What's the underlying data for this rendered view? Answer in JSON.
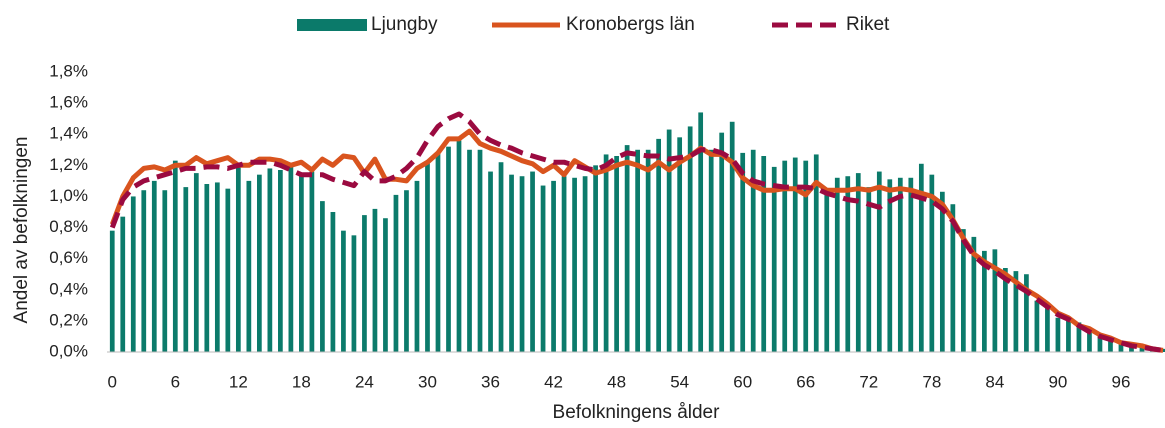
{
  "chart_data": {
    "type": "bar",
    "xlabel": "Befolkningens ålder",
    "ylabel": "Andel av befolkningen",
    "x": [
      0,
      1,
      2,
      3,
      4,
      5,
      6,
      7,
      8,
      9,
      10,
      11,
      12,
      13,
      14,
      15,
      16,
      17,
      18,
      19,
      20,
      21,
      22,
      23,
      24,
      25,
      26,
      27,
      28,
      29,
      30,
      31,
      32,
      33,
      34,
      35,
      36,
      37,
      38,
      39,
      40,
      41,
      42,
      43,
      44,
      45,
      46,
      47,
      48,
      49,
      50,
      51,
      52,
      53,
      54,
      55,
      56,
      57,
      58,
      59,
      60,
      61,
      62,
      63,
      64,
      65,
      66,
      67,
      68,
      69,
      70,
      71,
      72,
      73,
      74,
      75,
      76,
      77,
      78,
      79,
      80,
      81,
      82,
      83,
      84,
      85,
      86,
      87,
      88,
      89,
      90,
      91,
      92,
      93,
      94,
      95,
      96,
      97,
      98,
      99,
      100
    ],
    "xlim": [
      -0.5,
      100
    ],
    "xticks": [
      0,
      6,
      12,
      18,
      24,
      30,
      36,
      42,
      48,
      54,
      60,
      66,
      72,
      78,
      84,
      90,
      96
    ],
    "ylim": [
      0,
      1.8
    ],
    "yticks": [
      {
        "value": 0,
        "label": "0,0%"
      },
      {
        "value": 0.2,
        "label": "0,2%"
      },
      {
        "value": 0.4,
        "label": "0,4%"
      },
      {
        "value": 0.6,
        "label": "0,6%"
      },
      {
        "value": 0.8,
        "label": "0,8%"
      },
      {
        "value": 1.0,
        "label": "1,0%"
      },
      {
        "value": 1.2,
        "label": "1,2%"
      },
      {
        "value": 1.4,
        "label": "1,4%"
      },
      {
        "value": 1.6,
        "label": "1,6%"
      },
      {
        "value": 1.8,
        "label": "1,8%"
      }
    ],
    "legend": "top",
    "series": [
      {
        "name": "Ljungby",
        "type": "bar",
        "color": "#0b7a6a",
        "values": [
          0.78,
          0.87,
          1.0,
          1.04,
          1.1,
          1.04,
          1.23,
          1.06,
          1.15,
          1.08,
          1.09,
          1.05,
          1.2,
          1.1,
          1.14,
          1.18,
          1.17,
          1.2,
          1.15,
          1.16,
          0.97,
          0.9,
          0.78,
          0.75,
          0.88,
          0.92,
          0.86,
          1.01,
          1.04,
          1.1,
          1.22,
          1.28,
          1.32,
          1.36,
          1.3,
          1.3,
          1.16,
          1.22,
          1.14,
          1.13,
          1.16,
          1.07,
          1.1,
          1.13,
          1.12,
          1.13,
          1.2,
          1.27,
          1.26,
          1.33,
          1.3,
          1.3,
          1.37,
          1.43,
          1.38,
          1.45,
          1.54,
          1.3,
          1.41,
          1.48,
          1.28,
          1.3,
          1.26,
          1.19,
          1.23,
          1.25,
          1.23,
          1.27,
          1.02,
          1.12,
          1.13,
          1.15,
          1.06,
          1.16,
          1.11,
          1.12,
          1.12,
          1.21,
          1.14,
          1.03,
          0.95,
          0.79,
          0.74,
          0.65,
          0.66,
          0.54,
          0.52,
          0.5,
          0.33,
          0.29,
          0.22,
          0.22,
          0.19,
          0.14,
          0.1,
          0.08,
          0.06,
          0.05,
          0.03,
          0.02,
          0.02
        ]
      },
      {
        "name": "Kronobergs län",
        "type": "line",
        "dashed": false,
        "color": "#d9541e",
        "values": [
          0.82,
          1.0,
          1.12,
          1.18,
          1.19,
          1.17,
          1.2,
          1.2,
          1.25,
          1.21,
          1.23,
          1.25,
          1.2,
          1.2,
          1.24,
          1.24,
          1.23,
          1.2,
          1.22,
          1.17,
          1.24,
          1.2,
          1.26,
          1.25,
          1.15,
          1.24,
          1.11,
          1.11,
          1.1,
          1.18,
          1.22,
          1.28,
          1.37,
          1.37,
          1.42,
          1.34,
          1.31,
          1.29,
          1.26,
          1.23,
          1.21,
          1.16,
          1.2,
          1.14,
          1.23,
          1.19,
          1.15,
          1.17,
          1.2,
          1.22,
          1.2,
          1.17,
          1.22,
          1.17,
          1.22,
          1.26,
          1.31,
          1.27,
          1.27,
          1.22,
          1.12,
          1.07,
          1.04,
          1.04,
          1.05,
          1.05,
          1.01,
          1.09,
          1.04,
          1.04,
          1.04,
          1.05,
          1.04,
          1.06,
          1.04,
          1.05,
          1.04,
          1.02,
          1.0,
          0.95,
          0.85,
          0.73,
          0.63,
          0.58,
          0.54,
          0.5,
          0.45,
          0.4,
          0.36,
          0.31,
          0.25,
          0.22,
          0.17,
          0.15,
          0.11,
          0.09,
          0.06,
          0.05,
          0.04,
          0.02,
          0.01
        ]
      },
      {
        "name": "Riket",
        "type": "line",
        "dashed": true,
        "color": "#9b0a40",
        "values": [
          0.8,
          0.98,
          1.06,
          1.1,
          1.12,
          1.14,
          1.16,
          1.18,
          1.18,
          1.19,
          1.19,
          1.18,
          1.2,
          1.22,
          1.22,
          1.22,
          1.2,
          1.17,
          1.14,
          1.14,
          1.14,
          1.11,
          1.09,
          1.07,
          1.16,
          1.1,
          1.1,
          1.13,
          1.18,
          1.25,
          1.36,
          1.45,
          1.5,
          1.53,
          1.48,
          1.4,
          1.36,
          1.33,
          1.31,
          1.28,
          1.26,
          1.24,
          1.22,
          1.22,
          1.2,
          1.18,
          1.17,
          1.2,
          1.25,
          1.28,
          1.27,
          1.26,
          1.26,
          1.24,
          1.25,
          1.26,
          1.3,
          1.3,
          1.28,
          1.24,
          1.15,
          1.1,
          1.08,
          1.07,
          1.06,
          1.06,
          1.06,
          1.05,
          1.02,
          1.0,
          0.98,
          0.97,
          0.95,
          0.93,
          0.97,
          1.0,
          1.01,
          0.99,
          0.97,
          0.92,
          0.84,
          0.72,
          0.62,
          0.56,
          0.52,
          0.47,
          0.43,
          0.39,
          0.34,
          0.29,
          0.24,
          0.21,
          0.17,
          0.13,
          0.1,
          0.08,
          0.06,
          0.04,
          0.03,
          0.02,
          0.01
        ]
      }
    ]
  }
}
